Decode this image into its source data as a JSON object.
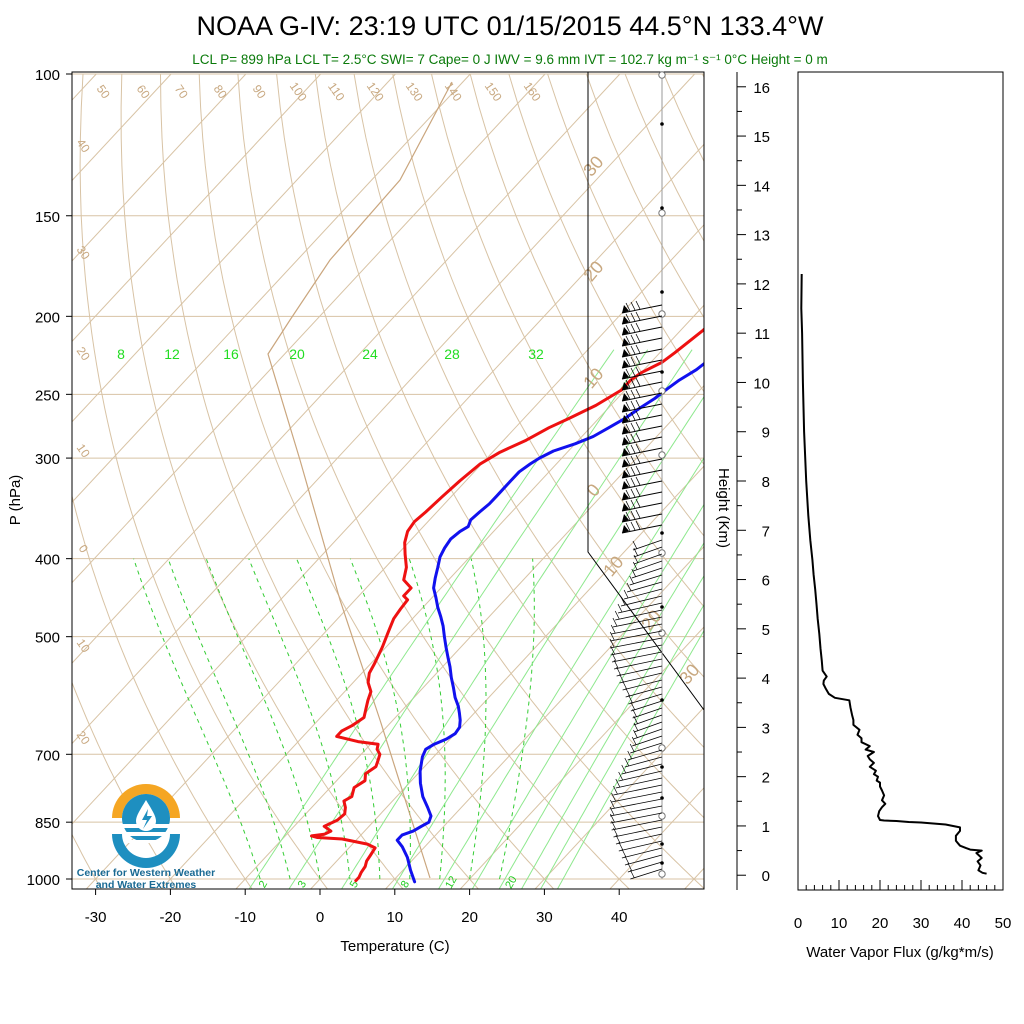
{
  "title": "NOAA G-IV: 23:19 UTC 01/15/2015  44.5°N 133.4°W",
  "subtitle": "LCL P= 899 hPa  LCL T= 2.5°C  SWI= 7  Cape= 0 J  IWV = 9.6 mm  IVT = 102.7 kg m⁻¹ s⁻¹  0°C Height = 0 m",
  "logo": {
    "line1": "Center for Western Weather",
    "line2": "and Water Extremes"
  },
  "chart_data": [
    {
      "type": "line",
      "title": "Skew-T log-P",
      "xlabel": "Temperature (C)",
      "ylabel": "P (hPa)",
      "xlim": [
        -34,
        52
      ],
      "ylim": [
        1030,
        100
      ],
      "y_scale": "log",
      "x_ticks": [
        "-30",
        "-20",
        "-10",
        "0",
        "10",
        "20",
        "30",
        "40"
      ],
      "y_ticks": [
        "100",
        "150",
        "200",
        "250",
        "300",
        "400",
        "500",
        "700",
        "850",
        "1000"
      ],
      "dry_adiabat_labels": [
        "50",
        "60",
        "70",
        "80",
        "90",
        "100",
        "110",
        "120",
        "130",
        "140",
        "150",
        "160",
        "40",
        "30",
        "20",
        "10",
        "0",
        "10",
        "20"
      ],
      "mixing_ratio_labels": [
        "8",
        "12",
        "16",
        "20",
        "24",
        "28",
        "32"
      ],
      "mixing_ratio_labels_bottom": [
        "2",
        "3",
        "5",
        "8",
        "12",
        "20"
      ],
      "isotherm_labels": [
        "30",
        "20",
        "10",
        "0",
        "10",
        "20",
        "30"
      ],
      "series": [
        {
          "name": "Dewpoint",
          "color": "#ee1111",
          "points": [
            [
              5,
              1005
            ],
            [
              5,
              995
            ],
            [
              4.7,
              982
            ],
            [
              4.5,
              965
            ],
            [
              4,
              950
            ],
            [
              3.8,
              935
            ],
            [
              3.5,
              915
            ],
            [
              2,
              905
            ],
            [
              -2,
              892
            ],
            [
              -5.5,
              888
            ],
            [
              -6.5,
              884
            ],
            [
              -5,
              880
            ],
            [
              -4.5,
              872
            ],
            [
              -6,
              860
            ],
            [
              -5,
              845
            ],
            [
              -4.8,
              830
            ],
            [
              -5.5,
              815
            ],
            [
              -6.5,
              800
            ],
            [
              -6,
              790
            ],
            [
              -6.8,
              770
            ],
            [
              -6.2,
              755
            ],
            [
              -7,
              740
            ],
            [
              -6.5,
              725
            ],
            [
              -7,
              712
            ],
            [
              -7.5,
              700
            ],
            [
              -8.5,
              690
            ],
            [
              -9,
              680
            ],
            [
              -12,
              675
            ],
            [
              -15.5,
              665
            ],
            [
              -15.5,
              655
            ],
            [
              -14.8,
              645
            ],
            [
              -14.2,
              630
            ],
            [
              -15,
              615
            ],
            [
              -15.8,
              600
            ],
            [
              -16.5,
              585
            ],
            [
              -18,
              570
            ],
            [
              -19,
              555
            ],
            [
              -19.5,
              540
            ],
            [
              -20.5,
              515
            ],
            [
              -21.5,
              495
            ],
            [
              -22.5,
              475
            ],
            [
              -22.8,
              462
            ],
            [
              -23,
              450
            ],
            [
              -24,
              445
            ],
            [
              -24,
              435
            ],
            [
              -26,
              425
            ],
            [
              -27.2,
              410
            ],
            [
              -29,
              395
            ],
            [
              -30.5,
              382
            ],
            [
              -31.5,
              370
            ],
            [
              -31.8,
              360
            ],
            [
              -31.5,
              350
            ],
            [
              -31.2,
              335
            ],
            [
              -30.8,
              320
            ],
            [
              -30.2,
              305
            ],
            [
              -29,
              295
            ],
            [
              -27,
              285
            ],
            [
              -25.5,
              275
            ],
            [
              -24,
              268
            ],
            [
              -22,
              258
            ],
            [
              -20.5,
              247
            ],
            [
              -20.5,
              240
            ],
            [
              -20,
              235
            ],
            [
              -18.5,
              228
            ],
            [
              -18,
              222
            ],
            [
              -17.5,
              215
            ],
            [
              -17,
              208
            ],
            [
              -16.8,
              200
            ],
            [
              -16.2,
              195
            ],
            [
              -16,
              190
            ],
            [
              -16,
              185
            ]
          ]
        },
        {
          "name": "Temperature",
          "color": "#1111ee",
          "points": [
            [
              13,
              1008
            ],
            [
              11,
              975
            ],
            [
              9,
              940
            ],
            [
              7,
              912
            ],
            [
              5.5,
              895
            ],
            [
              5.5,
              882
            ],
            [
              6.5,
              872
            ],
            [
              7,
              860
            ],
            [
              7.5,
              850
            ],
            [
              7,
              835
            ],
            [
              5.5,
              815
            ],
            [
              3.5,
              790
            ],
            [
              1.5,
              760
            ],
            [
              0,
              735
            ],
            [
              -1.5,
              705
            ],
            [
              -2,
              690
            ],
            [
              -1.5,
              680
            ],
            [
              -0.5,
              670
            ],
            [
              0,
              660
            ],
            [
              -0.2,
              648
            ],
            [
              -1,
              635
            ],
            [
              -2,
              622
            ],
            [
              -3,
              610
            ],
            [
              -4.5,
              595
            ],
            [
              -6,
              578
            ],
            [
              -7.5,
              562
            ],
            [
              -9,
              545
            ],
            [
              -10.5,
              530
            ],
            [
              -12,
              515
            ],
            [
              -13.5,
              500
            ],
            [
              -15,
              485
            ],
            [
              -16.5,
              472
            ],
            [
              -18,
              460
            ],
            [
              -19.5,
              447
            ],
            [
              -21,
              435
            ],
            [
              -22,
              423
            ],
            [
              -23,
              410
            ],
            [
              -24,
              398
            ],
            [
              -24.5,
              388
            ],
            [
              -24.8,
              378
            ],
            [
              -24.5,
              370
            ],
            [
              -24,
              365
            ],
            [
              -24.5,
              358
            ],
            [
              -24.3,
              350
            ],
            [
              -24,
              342
            ],
            [
              -24,
              335
            ],
            [
              -24,
              328
            ],
            [
              -24,
              320
            ],
            [
              -24,
              312
            ],
            [
              -23.5,
              305
            ],
            [
              -23,
              300
            ],
            [
              -22,
              294
            ],
            [
              -20,
              288
            ],
            [
              -18.5,
              282
            ],
            [
              -17.5,
              275
            ],
            [
              -16.5,
              268
            ],
            [
              -15.8,
              260
            ],
            [
              -15,
              253
            ],
            [
              -14.5,
              246
            ],
            [
              -14,
              240
            ],
            [
              -13,
              233
            ],
            [
              -12.5,
              226
            ],
            [
              -12,
              219
            ],
            [
              -11,
              212
            ],
            [
              -10.5,
              205
            ],
            [
              -10.5,
              198
            ],
            [
              -10.5,
              192
            ],
            [
              -10.5,
              186
            ]
          ]
        }
      ]
    },
    {
      "type": "line",
      "xlabel": "Water Vapor Flux (g/kg*m/s)",
      "ylabel": "Height (Km)",
      "xlim": [
        0,
        50
      ],
      "ylim": [
        -0.3,
        16.3
      ],
      "x_ticks": [
        "0",
        "10",
        "20",
        "30",
        "40",
        "50"
      ],
      "y_ticks": [
        "0",
        "1",
        "2",
        "3",
        "4",
        "5",
        "6",
        "7",
        "8",
        "9",
        "10",
        "11",
        "12",
        "13",
        "14",
        "15",
        "16"
      ],
      "series": [
        {
          "name": "Water Vapor Flux",
          "color": "#000000",
          "points": [
            [
              46,
              0.03
            ],
            [
              45,
              0.05
            ],
            [
              44,
              0.1
            ],
            [
              44.5,
              0.2
            ],
            [
              43.8,
              0.28
            ],
            [
              44.8,
              0.35
            ],
            [
              43.5,
              0.45
            ],
            [
              44.8,
              0.5
            ],
            [
              42,
              0.52
            ],
            [
              41,
              0.55
            ],
            [
              39.5,
              0.6
            ],
            [
              39,
              0.65
            ],
            [
              38.5,
              0.7
            ],
            [
              38.5,
              0.8
            ],
            [
              39.5,
              0.9
            ],
            [
              39.5,
              0.97
            ],
            [
              36,
              1.03
            ],
            [
              33,
              1.05
            ],
            [
              30,
              1.07
            ],
            [
              27,
              1.08
            ],
            [
              24,
              1.1
            ],
            [
              21,
              1.11
            ],
            [
              20,
              1.12
            ],
            [
              19.5,
              1.2
            ],
            [
              19.8,
              1.3
            ],
            [
              20.5,
              1.38
            ],
            [
              21.3,
              1.45
            ],
            [
              20.5,
              1.52
            ],
            [
              21,
              1.62
            ],
            [
              20.5,
              1.72
            ],
            [
              20,
              1.8
            ],
            [
              20,
              1.88
            ],
            [
              19.2,
              1.92
            ],
            [
              19.5,
              2
            ],
            [
              18.5,
              2.05
            ],
            [
              19,
              2.12
            ],
            [
              17.5,
              2.2
            ],
            [
              18.5,
              2.28
            ],
            [
              17.5,
              2.35
            ],
            [
              17,
              2.42
            ],
            [
              18.5,
              2.5
            ],
            [
              16.5,
              2.55
            ],
            [
              17.5,
              2.62
            ],
            [
              15.5,
              2.7
            ],
            [
              15.5,
              2.78
            ],
            [
              14.5,
              2.85
            ],
            [
              15,
              2.95
            ],
            [
              13.5,
              3.05
            ],
            [
              13.5,
              3.15
            ],
            [
              13.2,
              3.25
            ],
            [
              12.8,
              3.4
            ],
            [
              12.5,
              3.55
            ],
            [
              9,
              3.6
            ],
            [
              7.5,
              3.68
            ],
            [
              6.8,
              3.78
            ],
            [
              6.2,
              3.88
            ],
            [
              6.3,
              3.95
            ],
            [
              7,
              4.03
            ],
            [
              6,
              4.15
            ],
            [
              5.8,
              4.35
            ],
            [
              5.5,
              4.6
            ],
            [
              5.2,
              4.9
            ],
            [
              4.8,
              5.2
            ],
            [
              4.5,
              5.5
            ],
            [
              4.2,
              5.8
            ],
            [
              3.8,
              6.1
            ],
            [
              3.5,
              6.4
            ],
            [
              3,
              6.8
            ],
            [
              2.5,
              7.3
            ],
            [
              2,
              8
            ],
            [
              1.5,
              9
            ],
            [
              1.2,
              10
            ],
            [
              1,
              11
            ],
            [
              0.8,
              11.5
            ],
            [
              0.9,
              12.2
            ]
          ]
        }
      ]
    }
  ]
}
